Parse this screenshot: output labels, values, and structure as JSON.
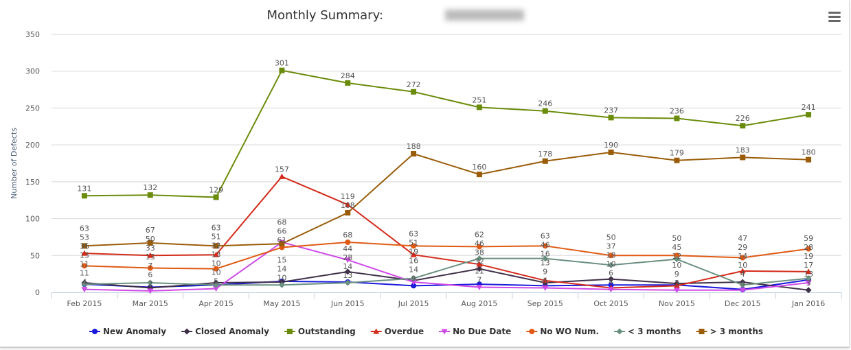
{
  "chart_data": {
    "type": "line",
    "title": "Monthly Summary:",
    "xlabel": "",
    "ylabel": "Number of Defects",
    "ylim": [
      0,
      350
    ],
    "yticks": [
      0,
      50,
      100,
      150,
      200,
      250,
      300,
      350
    ],
    "grid": true,
    "legend_position": "bottom",
    "categories": [
      "Feb 2015",
      "Mar 2015",
      "Apr 2015",
      "May 2015",
      "Jun 2015",
      "Jul 2015",
      "Aug 2015",
      "Sep 2015",
      "Oct 2015",
      "Nov 2015",
      "Dec 2015",
      "Jan 2016"
    ],
    "series": [
      {
        "name": "New Anomaly",
        "color": "#1a1adc",
        "marker": "circle",
        "values": [
          11,
          7,
          10,
          15,
          14,
          9,
          11,
          9,
          10,
          10,
          4,
          17
        ]
      },
      {
        "name": "Closed Anomaly",
        "color": "#3f2f48",
        "marker": "diamond",
        "values": [
          13,
          6,
          13,
          14,
          28,
          16,
          32,
          13,
          18,
          12,
          14,
          3
        ]
      },
      {
        "name": "Outstanding",
        "color": "#6a8c0a",
        "marker": "square",
        "values": [
          131,
          132,
          129,
          301,
          284,
          272,
          251,
          246,
          237,
          236,
          226,
          241
        ]
      },
      {
        "name": "Overdue",
        "color": "#d42a1a",
        "marker": "triangle",
        "values": [
          53,
          50,
          51,
          157,
          119,
          51,
          38,
          16,
          6,
          9,
          29,
          28
        ]
      },
      {
        "name": "No Due Date",
        "color": "#d04ae8",
        "marker": "triangle-down",
        "values": [
          4,
          2,
          5,
          68,
          44,
          14,
          7,
          6,
          4,
          3,
          3,
          13
        ]
      },
      {
        "name": "No WO Num.",
        "color": "#e05a14",
        "marker": "circle",
        "values": [
          36,
          33,
          32,
          61,
          68,
          63,
          62,
          63,
          50,
          50,
          47,
          59
        ]
      },
      {
        "name": "< 3 months",
        "color": "#6a9080",
        "marker": "diamond",
        "values": [
          11,
          13,
          10,
          10,
          13,
          19,
          46,
          46,
          37,
          45,
          10,
          19
        ]
      },
      {
        "name": "> 3 months",
        "color": "#9a5c08",
        "marker": "square",
        "values": [
          63,
          67,
          63,
          66,
          108,
          188,
          160,
          178,
          190,
          179,
          183,
          180
        ]
      }
    ]
  }
}
